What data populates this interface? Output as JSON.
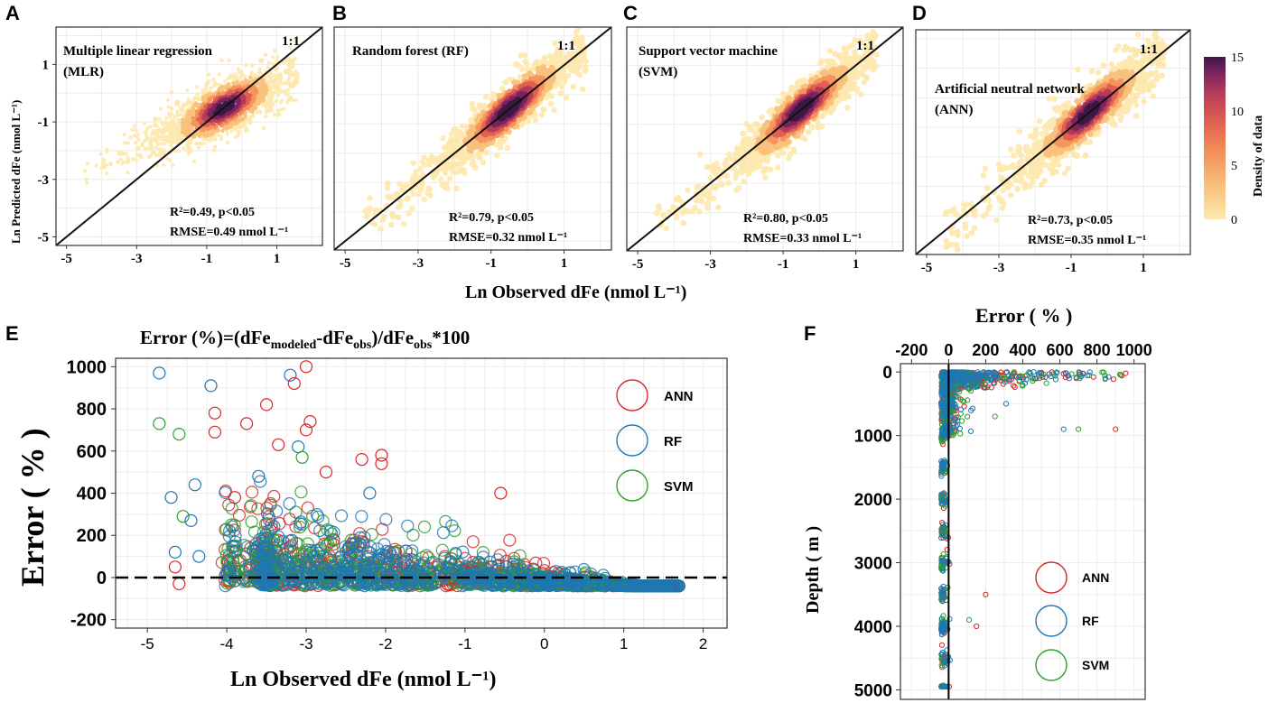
{
  "chart_data": [
    {
      "type": "scatter",
      "panel": "A",
      "title": "Multiple linear regression (MLR)",
      "title_line1": "Multiple linear regression",
      "title_line2": "(MLR)",
      "identity_label": "1:1",
      "r2_text": "R²=0.49, p<0.05",
      "rmse_text": "RMSE=0.49 nmol L⁻¹",
      "r2": 0.49,
      "p": "<0.05",
      "rmse": 0.49,
      "xlim": [
        -5.3,
        2.3
      ],
      "ylim": [
        -5.3,
        2.3
      ],
      "xticks": [
        -5,
        -3,
        -1,
        1
      ],
      "yticks": [
        1,
        -1,
        -3,
        -5
      ],
      "ylabel": "Ln Predicted dFe (nmol L⁻¹)",
      "spread": 0.45
    },
    {
      "type": "scatter",
      "panel": "B",
      "title": "Random forest (RF)",
      "title_line1": "Random forest (RF)",
      "title_line2": "",
      "identity_label": "1:1",
      "r2_text": "R²=0.79, p<0.05",
      "rmse_text": "RMSE=0.32 nmol L⁻¹",
      "r2": 0.79,
      "p": "<0.05",
      "rmse": 0.32,
      "xlim": [
        -5.3,
        2.3
      ],
      "ylim": [
        -5.3,
        2.3
      ],
      "xticks": [
        -5,
        -3,
        -1,
        1
      ],
      "spread": 0.32
    },
    {
      "type": "scatter",
      "panel": "C",
      "title": "Support vector machine (SVM)",
      "title_line1": "Support vector machine",
      "title_line2": "(SVM)",
      "identity_label": "1:1",
      "r2_text": "R²=0.80, p<0.05",
      "rmse_text": "RMSE=0.33 nmol L⁻¹",
      "r2": 0.8,
      "p": "<0.05",
      "rmse": 0.33,
      "xlim": [
        -5.3,
        2.3
      ],
      "ylim": [
        -5.3,
        2.3
      ],
      "xticks": [
        -5,
        -3,
        -1,
        1
      ],
      "spread": 0.33
    },
    {
      "type": "scatter",
      "panel": "D",
      "title": "Artificial neutral network (ANN)",
      "title_line1": "Artificial neutral network",
      "title_line2": "(ANN)",
      "identity_label": "1:1",
      "r2_text": "R²=0.73, p<0.05",
      "rmse_text": "RMSE=0.35 nmol L⁻¹",
      "r2": 0.73,
      "p": "<0.05",
      "rmse": 0.35,
      "xlim": [
        -5.3,
        2.3
      ],
      "ylim": [
        -5.3,
        2.3
      ],
      "xticks": [
        -5,
        -3,
        -1,
        1
      ],
      "spread": 0.36,
      "colorbar": {
        "title": "Density of data",
        "range": [
          0,
          15
        ],
        "ticks": [
          15,
          10,
          5,
          0
        ]
      }
    },
    {
      "type": "scatter",
      "panel": "E",
      "title": "Error (%)=(dFe_modeled-dFe_obs)/dFe_obs*100",
      "title_parts": {
        "a": "Error (%)=(dFe",
        "b": "modeled",
        "c": "-dFe",
        "d": "obs",
        "e": ")/dFe",
        "f": "obs",
        "g": "*100"
      },
      "xlabel": "Ln Observed dFe (nmol L⁻¹)",
      "ylabel": "Error ( % )",
      "xlim": [
        -5.4,
        2.3
      ],
      "ylim": [
        -240,
        1040
      ],
      "xticks": [
        -5,
        -4,
        -3,
        -2,
        -1,
        0,
        1,
        2
      ],
      "yticks": [
        1000,
        800,
        600,
        400,
        200,
        0,
        -200
      ],
      "series": [
        {
          "name": "ANN",
          "color": "#d62728"
        },
        {
          "name": "RF",
          "color": "#1f77b4"
        },
        {
          "name": "SVM",
          "color": "#2ca02c"
        }
      ]
    },
    {
      "type": "scatter",
      "panel": "F",
      "title": "Error ( % )",
      "ylabel": "Depth ( m )",
      "xlim": [
        -260,
        1060
      ],
      "ylim": [
        5150,
        -130
      ],
      "xticks": [
        -200,
        0,
        200,
        400,
        600,
        800,
        1000
      ],
      "yticks": [
        0,
        1000,
        2000,
        3000,
        4000,
        5000
      ],
      "series": [
        {
          "name": "ANN",
          "color": "#d62728"
        },
        {
          "name": "RF",
          "color": "#1f77b4"
        },
        {
          "name": "SVM",
          "color": "#2ca02c"
        }
      ]
    }
  ],
  "shared": {
    "top_xlabel": "Ln Observed dFe (nmol L⁻¹)",
    "density_colors": [
      "#fde9b0",
      "#f9c17c",
      "#f4945c",
      "#e0604f",
      "#b53b5a",
      "#7b245f",
      "#3d1845"
    ]
  },
  "panel_letters": [
    "A",
    "B",
    "C",
    "D",
    "E",
    "F"
  ]
}
